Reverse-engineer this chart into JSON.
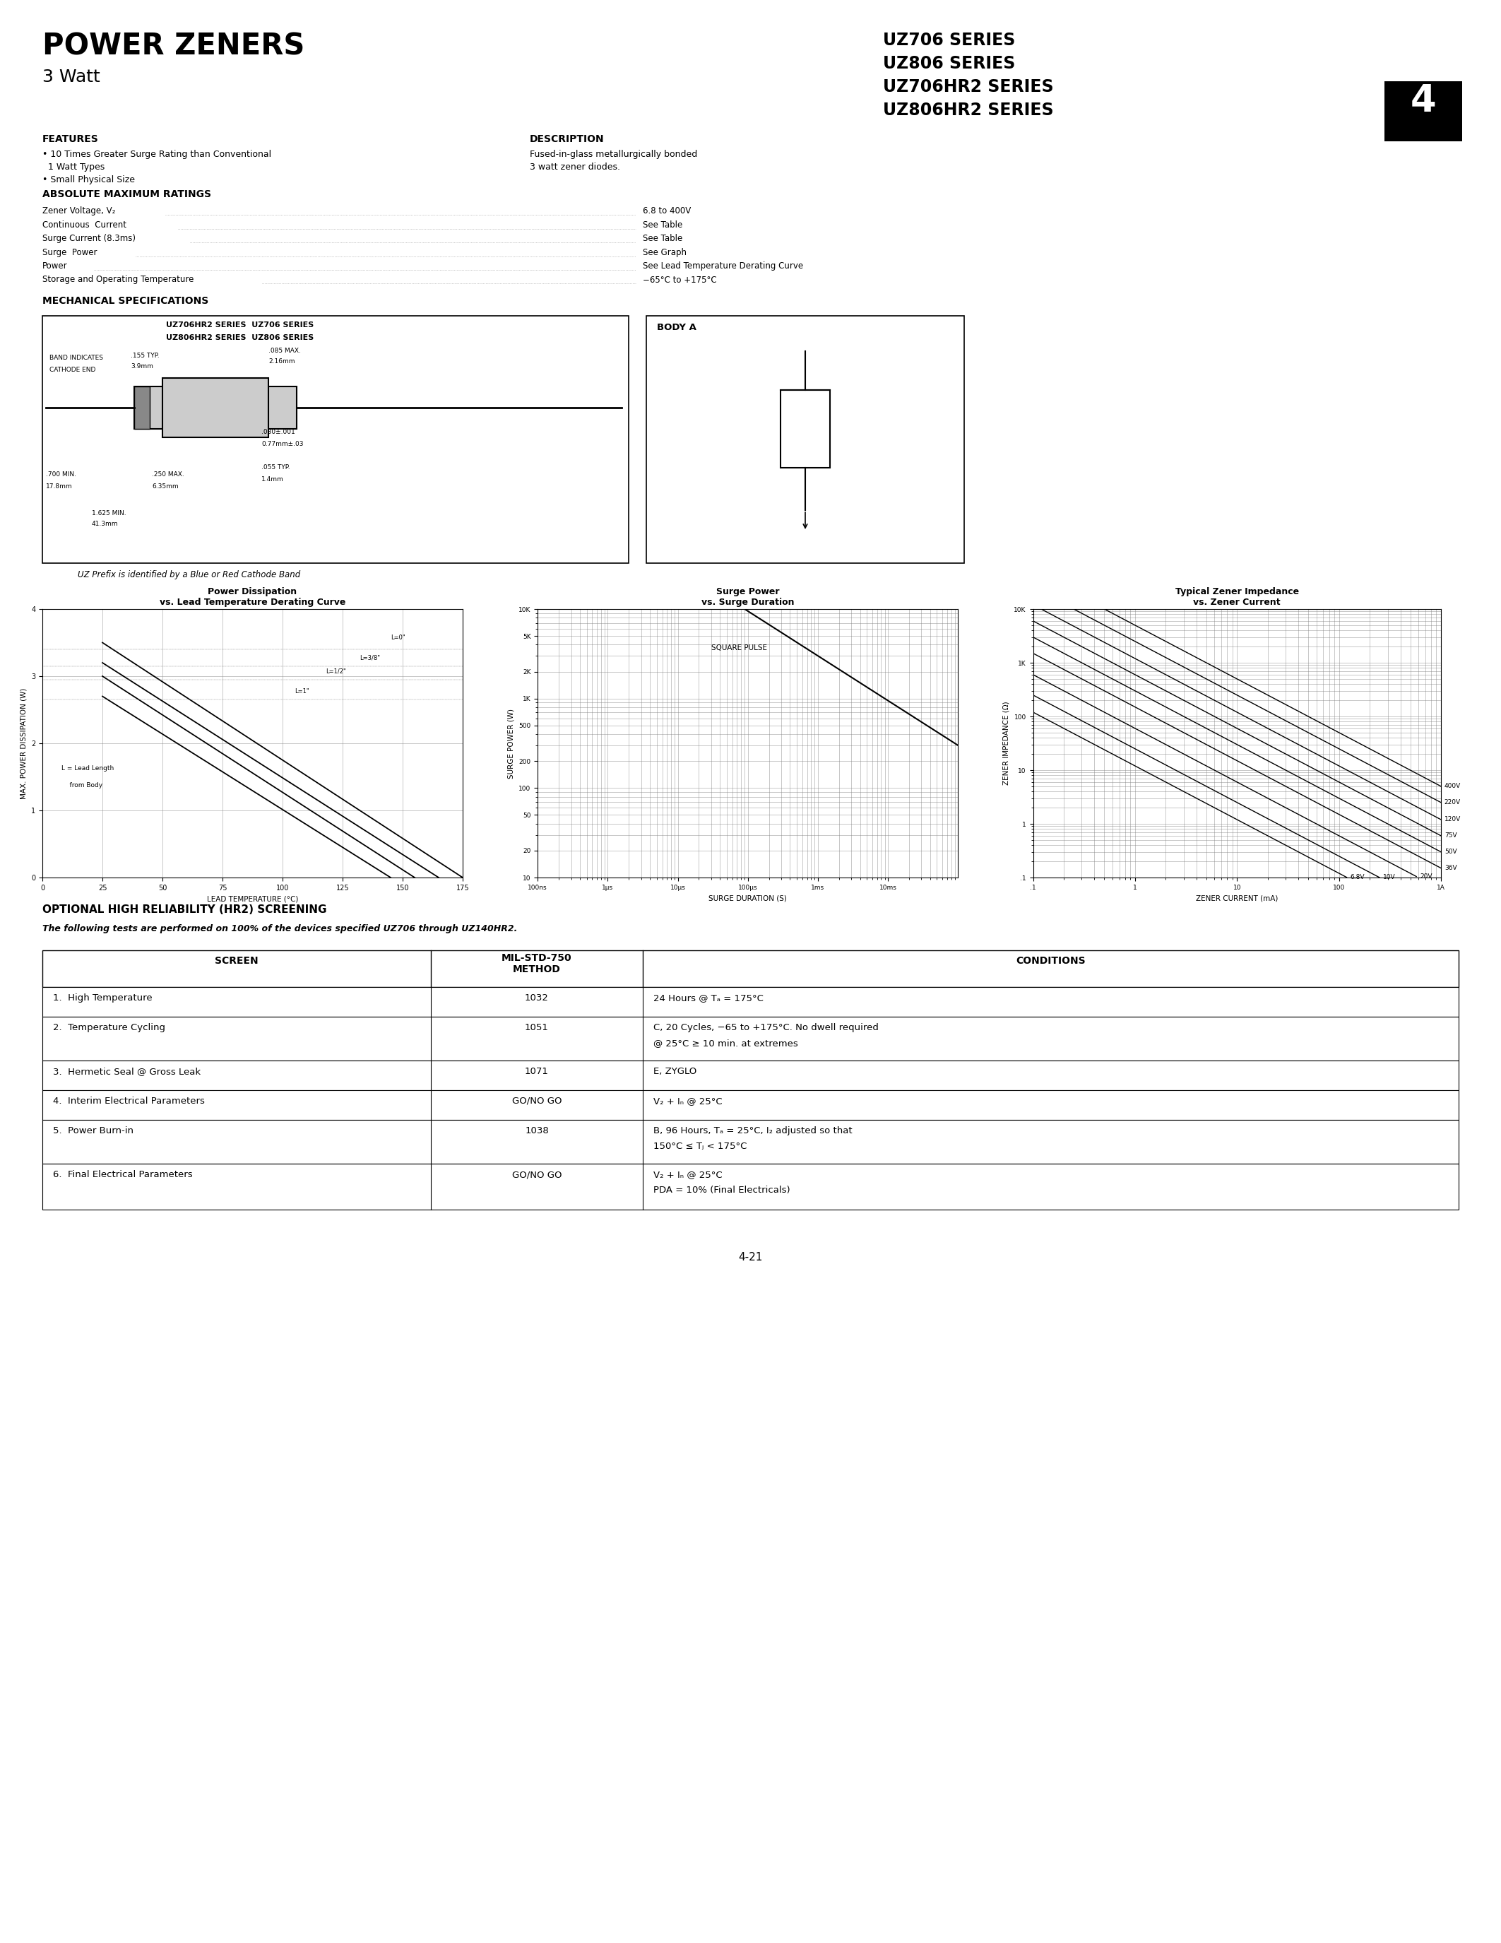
{
  "title_main": "POWER ZENERS",
  "title_sub": "3 Watt",
  "series_lines": [
    "UZ706 SERIES",
    "UZ806 SERIES",
    "UZ706HR2 SERIES",
    "UZ806HR2 SERIES"
  ],
  "features_title": "FEATURES",
  "features": [
    "• 10 Times Greater Surge Rating than Conventional",
    "  1 Watt Types",
    "• Small Physical Size"
  ],
  "description_title": "DESCRIPTION",
  "description": [
    "Fused-in-glass metallurgically bonded",
    "3 watt zener diodes."
  ],
  "tab_number": "4",
  "abs_max_title": "ABSOLUTE MAXIMUM RATINGS",
  "abs_max_items": [
    [
      "Zener Voltage, V₂",
      "6.8 to 400V"
    ],
    [
      "Continuous  Current",
      "See Table"
    ],
    [
      "Surge Current (8.3ms)",
      "See Table"
    ],
    [
      "Surge  Power",
      "See Graph"
    ],
    [
      "Power",
      "See Lead Temperature Derating Curve"
    ],
    [
      "Storage and Operating Temperature",
      "−65°C to +175°C"
    ]
  ],
  "mech_title": "MECHANICAL SPECIFICATIONS",
  "body_a_label": "BODY A",
  "graph1_title": "Power Dissipation\nvs. Lead Temperature Derating Curve",
  "graph2_title": "Surge Power\nvs. Surge Duration",
  "graph3_title": "Typical Zener Impedance\nvs. Zener Current",
  "graph2_annotation": "SQUARE PULSE",
  "graph3_labels": [
    "400V",
    "220V",
    "120V",
    "75V",
    "50V",
    "36V",
    "20V",
    "10V",
    "6.8V"
  ],
  "optional_title": "OPTIONAL HIGH RELIABILITY (HR2) SCREENING",
  "optional_subtitle": "The following tests are performed on 100% of the devices specified UZ706 through UZ140HR2.",
  "table_rows": [
    [
      "1.  High Temperature",
      "1032",
      "24 Hours @ Tₐ = 175°C"
    ],
    [
      "2.  Temperature Cycling",
      "1051",
      "C, 20 Cycles, −65 to +175°C. No dwell required\n@ 25°C ≥ 10 min. at extremes"
    ],
    [
      "3.  Hermetic Seal @ Gross Leak",
      "1071",
      "E, ZYGLO"
    ],
    [
      "4.  Interim Electrical Parameters",
      "GO/NO GO",
      "V₂ + Iₙ @ 25°C"
    ],
    [
      "5.  Power Burn-in",
      "1038",
      "B, 96 Hours, Tₐ = 25°C, I₂ adjusted so that\n150°C ≤ Tⱼ < 175°C"
    ],
    [
      "6.  Final Electrical Parameters",
      "GO/NO GO",
      "V₂ + Iₙ @ 25°C\nPDA = 10% (Final Electricals)"
    ]
  ],
  "page_number": "4-21",
  "bg_color": "#ffffff"
}
